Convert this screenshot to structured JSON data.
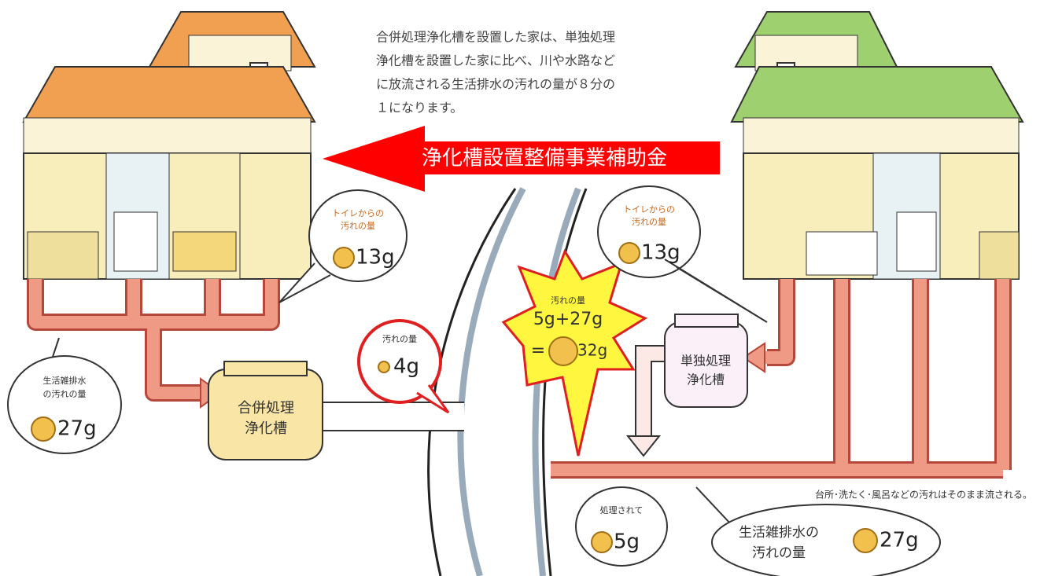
{
  "description": {
    "lines": [
      "合併処理浄化槽を設置した家は、単独処理",
      "浄化槽を設置した家に比べ、川や水路など",
      "に放流される生活排水の汚れの量が８分の",
      "１になります。"
    ]
  },
  "subsidy_banner": "浄化槽設置整備事業補助金",
  "left_house": {
    "toilet_bubble": {
      "label": [
        "トイレからの",
        "汚れの量"
      ],
      "amount": "13g"
    },
    "graywater_bubble": {
      "label": [
        "生活雑排水",
        "の汚れの量"
      ],
      "amount": "27g"
    },
    "tank": [
      "合併処理",
      "浄化槽"
    ],
    "discharge_bubble": {
      "label": "汚れの量",
      "amount": "4g"
    }
  },
  "river_total": {
    "label": "汚れの量",
    "formula": "5g+27g",
    "equals": "=",
    "amount": "32g"
  },
  "right_house": {
    "toilet_bubble": {
      "label": [
        "トイレからの",
        "汚れの量"
      ],
      "amount": "13g"
    },
    "tank": [
      "単独処理",
      "浄化槽"
    ],
    "treated_bubble": {
      "label": "処理されて",
      "amount": "5g"
    },
    "graywater_bubble": {
      "label": [
        "生活雑排水の",
        "汚れの量"
      ],
      "amount": "27g"
    },
    "note": "台所･洗たく･風呂などの汚れはそのまま流される。"
  }
}
